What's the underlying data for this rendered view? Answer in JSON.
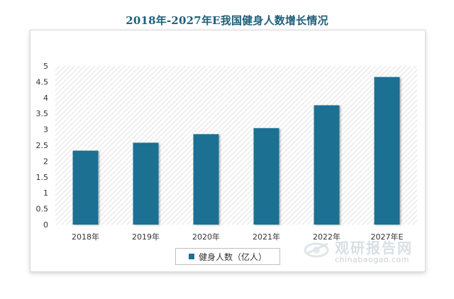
{
  "chart_data": {
    "type": "bar",
    "title": "2018年-2027年E我国健身人数增长情况",
    "categories": [
      "2018年",
      "2019年",
      "2020年",
      "2021年",
      "2022年",
      "2027年E"
    ],
    "series": [
      {
        "name": "健身人数（亿人）",
        "values": [
          2.33,
          2.58,
          2.85,
          3.04,
          3.76,
          4.65
        ]
      }
    ],
    "ylim": [
      0,
      5
    ],
    "yticks": [
      "0",
      "0.5",
      "1",
      "1.5",
      "2",
      "2.5",
      "3",
      "3.5",
      "4",
      "4.5",
      "5"
    ],
    "legend_position": "bottom",
    "bar_color": "#1e6f92",
    "plot_background": "hatched"
  },
  "watermark": {
    "cn": "观研报告网",
    "en": "chinabaogao.com"
  }
}
